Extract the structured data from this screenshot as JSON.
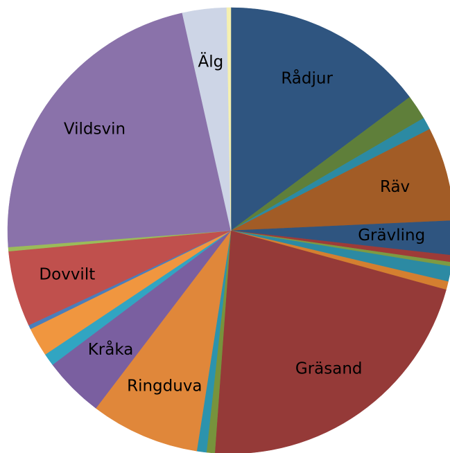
{
  "chart_data": {
    "type": "pie",
    "categories": [
      "Rådjur",
      null,
      null,
      "Räv",
      "Grävling",
      null,
      null,
      null,
      null,
      "Gräsand",
      null,
      null,
      "Ringduva",
      "Kråka",
      null,
      null,
      null,
      "Dovvilt",
      null,
      "Vildsvin",
      "Älg",
      null
    ],
    "values": [
      14.8,
      1.8,
      0.9,
      6.8,
      2.5,
      0.5,
      0.3,
      1.1,
      0.6,
      21.9,
      0.6,
      0.7,
      7.9,
      4.4,
      0.9,
      2.1,
      0.3,
      5.5,
      0.3,
      22.7,
      3.2,
      0.3
    ],
    "colors": [
      "#2f5580",
      "#5f7f3a",
      "#2c8aa3",
      "#a25c26",
      "#2f5580",
      "#9e3b38",
      "#7e9a42",
      "#2c8aa3",
      "#d47f30",
      "#953a38",
      "#77933c",
      "#2c93ad",
      "#e0873a",
      "#7a5fa0",
      "#31a5c2",
      "#f0963f",
      "#4a7ebb",
      "#c0504d",
      "#9bbb59",
      "#8a72aa",
      "#cdd5e6",
      "#f5f0b0"
    ]
  }
}
